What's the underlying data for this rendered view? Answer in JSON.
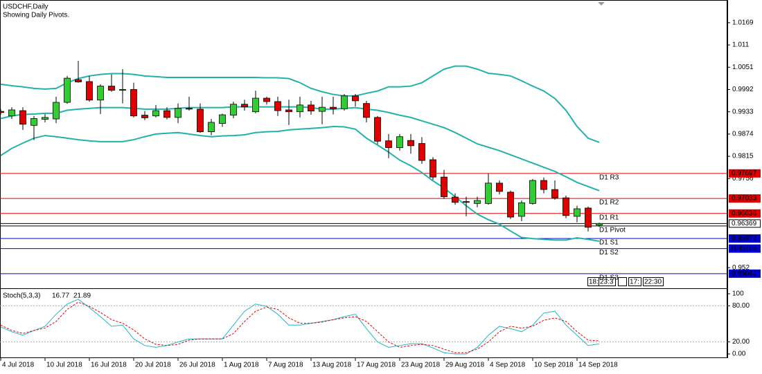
{
  "chart_data": [
    {
      "type": "candlestick",
      "title": "USDCHF,Daily",
      "subtitle": "Showing Daily Pivots.",
      "categories": [
        "4 Jul 2018",
        null,
        null,
        null,
        "10 Jul 2018",
        null,
        null,
        null,
        "16 Jul 2018",
        null,
        null,
        null,
        "20 Jul 2018",
        null,
        null,
        null,
        "26 Jul 2018",
        null,
        null,
        null,
        "1 Aug 2018",
        null,
        null,
        null,
        "7 Aug 2018",
        null,
        null,
        null,
        "13 Aug 2018",
        null,
        null,
        null,
        "17 Aug 2018",
        null,
        null,
        null,
        "23 Aug 2018",
        null,
        null,
        null,
        "29 Aug 2018",
        null,
        null,
        null,
        "4 Sep 2018",
        null,
        null,
        null,
        "10 Sep 2018",
        null,
        null,
        null,
        "14 Sep 2018",
        null,
        null
      ],
      "open": [
        0.9934,
        0.9922,
        0.9936,
        0.9897,
        0.9913,
        0.9914,
        0.9958,
        1.0018,
        1.0013,
        0.9964,
        1.0001,
        0.999,
        0.9992,
        0.9924,
        0.9922,
        0.9936,
        0.9918,
        0.9942,
        0.994,
        0.988,
        0.9902,
        0.9924,
        0.9953,
        0.9933,
        0.9969,
        0.996,
        0.9938,
        0.9933,
        0.9951,
        0.9934,
        0.9945,
        0.9941,
        0.9975,
        0.9955,
        0.9918,
        0.9856,
        0.9838,
        0.9857,
        0.9849,
        0.9806,
        0.976,
        0.9707,
        0.9695,
        0.969,
        0.969,
        0.9744,
        0.972,
        0.9656,
        0.969,
        0.9751,
        0.9727,
        0.9705,
        0.9656,
        0.9678,
        0.9633
      ],
      "high": [
        0.994,
        0.9945,
        0.9945,
        0.9922,
        0.9927,
        0.9973,
        1.0028,
        1.0068,
        1.0028,
        1.0006,
        1.0032,
        1.0046,
        1.001,
        0.9935,
        0.9951,
        0.9945,
        0.9955,
        0.9973,
        0.9955,
        0.9914,
        0.9928,
        0.996,
        0.9965,
        0.9989,
        0.9973,
        0.9973,
        0.9965,
        0.9973,
        0.9962,
        0.9973,
        0.9973,
        0.998,
        0.998,
        0.9962,
        0.9922,
        0.9874,
        0.9874,
        0.9874,
        0.9866,
        0.9813,
        0.9779,
        0.9717,
        0.9708,
        0.9708,
        0.9769,
        0.9751,
        0.9724,
        0.9698,
        0.9755,
        0.9759,
        0.9751,
        0.9711,
        0.9684,
        0.9682,
        0.9639
      ],
      "low": [
        0.9925,
        0.9914,
        0.9885,
        0.9858,
        0.9905,
        0.9903,
        0.9954,
        1.001,
        0.996,
        0.9927,
        0.9986,
        0.9955,
        0.9918,
        0.9911,
        0.9918,
        0.9913,
        0.9903,
        0.9936,
        0.9877,
        0.9871,
        0.9893,
        0.9916,
        0.9936,
        0.9929,
        0.9952,
        0.9922,
        0.9898,
        0.9918,
        0.9925,
        0.99,
        0.9926,
        0.9936,
        0.9947,
        0.9905,
        0.9847,
        0.981,
        0.983,
        0.9822,
        0.9795,
        0.9753,
        0.9702,
        0.9687,
        0.9656,
        0.968,
        0.9687,
        0.9714,
        0.9649,
        0.9643,
        0.9687,
        0.9717,
        0.97,
        0.9651,
        0.964,
        0.9616,
        0.9628
      ],
      "close": [
        0.9931,
        0.9938,
        0.99,
        0.9915,
        0.9918,
        0.9958,
        1.0022,
        1.0012,
        0.9964,
        1.0001,
        0.999,
        0.9992,
        0.9922,
        0.9917,
        0.9936,
        0.9918,
        0.9942,
        0.994,
        0.988,
        0.9905,
        0.9925,
        0.9953,
        0.9946,
        0.9969,
        0.996,
        0.9936,
        0.9933,
        0.9951,
        0.9935,
        0.9945,
        0.9941,
        0.9975,
        0.9962,
        0.9918,
        0.9855,
        0.9838,
        0.9867,
        0.9843,
        0.9804,
        0.976,
        0.9708,
        0.9693,
        0.9693,
        0.9698,
        0.9744,
        0.9722,
        0.9654,
        0.9692,
        0.9751,
        0.9727,
        0.9705,
        0.9658,
        0.9676,
        0.9627,
        0.96369
      ],
      "up_color": "#32cd32",
      "down_color": "#e00000",
      "series": [
        {
          "color": "#20b2aa",
          "values": [
            1.0006,
            1.0002,
            0.9999,
            0.9995,
            0.9993,
            0.9995,
            1.001,
            1.0021,
            1.0028,
            1.0032,
            1.0034,
            1.0034,
            1.0032,
            1.0028,
            1.0026,
            1.0024,
            1.0024,
            1.0024,
            1.0024,
            1.0024,
            1.0024,
            1.0024,
            1.0024,
            1.0024,
            1.0023,
            1.0023,
            1.0021,
            1.001,
            0.9995,
            0.9986,
            0.9979,
            0.9975,
            0.9975,
            0.9982,
            0.9988,
            0.9999,
            0.9999,
            1.0001,
            1.001,
            1.0028,
            1.0046,
            1.0054,
            1.0054,
            1.0046,
            1.0035,
            1.0032,
            1.0028,
            1.0015,
            1.0001,
            0.9988,
            0.9968,
            0.9937,
            0.9894,
            0.9863,
            0.9852
          ]
        },
        {
          "color": "#20b2aa",
          "values": [
            0.9915,
            0.9922,
            0.9926,
            0.9927,
            0.9929,
            0.9929,
            0.9937,
            0.994,
            0.9942,
            0.9944,
            0.9944,
            0.9944,
            0.9942,
            0.994,
            0.994,
            0.994,
            0.9942,
            0.9944,
            0.9944,
            0.9944,
            0.9944,
            0.9946,
            0.9946,
            0.9946,
            0.9946,
            0.9946,
            0.9946,
            0.9946,
            0.9944,
            0.994,
            0.994,
            0.9942,
            0.9944,
            0.994,
            0.9937,
            0.9931,
            0.9924,
            0.9918,
            0.9909,
            0.99,
            0.9891,
            0.9878,
            0.9863,
            0.9848,
            0.9839,
            0.983,
            0.9819,
            0.9808,
            0.9797,
            0.9786,
            0.9775,
            0.9761,
            0.9746,
            0.9735,
            0.9724
          ]
        },
        {
          "color": "#20b2aa",
          "values": [
            0.9817,
            0.9836,
            0.985,
            0.9863,
            0.987,
            0.9867,
            0.9863,
            0.9859,
            0.9856,
            0.9854,
            0.9854,
            0.9854,
            0.9859,
            0.9867,
            0.9874,
            0.9876,
            0.9878,
            0.9874,
            0.987,
            0.9867,
            0.9869,
            0.987,
            0.9872,
            0.9878,
            0.988,
            0.9881,
            0.9885,
            0.9887,
            0.9889,
            0.9891,
            0.9894,
            0.9893,
            0.9887,
            0.9863,
            0.9845,
            0.9826,
            0.9805,
            0.979,
            0.9772,
            0.975,
            0.9731,
            0.9708,
            0.9684,
            0.9662,
            0.9647,
            0.9635,
            0.9617,
            0.96,
            0.9597,
            0.9595,
            0.9593,
            0.9593,
            0.9599,
            0.9595,
            0.959
          ]
        }
      ],
      "pivots": [
        {
          "label": "D1 R3",
          "value": 0.97697,
          "color": "#e00000"
        },
        {
          "label": "D1 R2",
          "value": 0.97033,
          "color": "#e00000"
        },
        {
          "label": "D1 R1",
          "value": 0.96636,
          "color": "#e00000"
        },
        {
          "label": "D1 Pivot",
          "value": 0.96304,
          "color": "#000000"
        },
        {
          "label": "D1 S1",
          "value": 0.95972,
          "color": "#0000c8"
        },
        {
          "label": "D1 S2",
          "value": 0.95705,
          "color": "#0000c8"
        },
        {
          "label": "D1 S3",
          "value": 0.95041,
          "color": "#0000c8"
        }
      ],
      "current_price": 0.96369,
      "ylim": [
        0.9469,
        1.022
      ],
      "yticks": [
        1.0169,
        1.011,
        1.0051,
        0.9992,
        0.9933,
        0.9874,
        0.9815,
        0.9756,
        0.952
      ]
    },
    {
      "type": "line",
      "title": "Stoch(5,3,3)",
      "series": [
        {
          "color": "#1fb5c9",
          "values": [
            45,
            37,
            31,
            39,
            46,
            66,
            83,
            91,
            77,
            62,
            46,
            48,
            25,
            14,
            11,
            14,
            20,
            25,
            25,
            25,
            25,
            48,
            71,
            83,
            79,
            66,
            48,
            48,
            51,
            54,
            57,
            62,
            66,
            42,
            20,
            11,
            14,
            17,
            17,
            10,
            2,
            0,
            0,
            11,
            31,
            46,
            42,
            37,
            48,
            68,
            71,
            48,
            31,
            14,
            16.77
          ]
        },
        {
          "color": "#e00000",
          "dashed": true,
          "values": [
            48,
            39,
            34,
            39,
            43,
            54,
            74,
            86,
            79,
            69,
            57,
            51,
            40,
            25,
            16,
            14,
            16,
            23,
            25,
            25,
            25,
            34,
            54,
            71,
            78,
            74,
            60,
            51,
            51,
            53,
            57,
            60,
            62,
            54,
            37,
            20,
            11,
            14,
            16,
            14,
            8,
            2,
            2,
            8,
            20,
            37,
            46,
            43,
            46,
            56,
            60,
            54,
            37,
            23,
            21.89
          ]
        }
      ],
      "levels": [
        80,
        20
      ],
      "ylim": [
        -6.9,
        105.7
      ],
      "yticks": [
        100,
        {
          "value": 80,
          "label": "80.00"
        },
        {
          "value": 20,
          "label": "20.00"
        },
        {
          "value": 0,
          "label": "0.00"
        }
      ]
    }
  ],
  "time_labels": [
    "18:",
    "23:3",
    "17:",
    "22:30"
  ]
}
